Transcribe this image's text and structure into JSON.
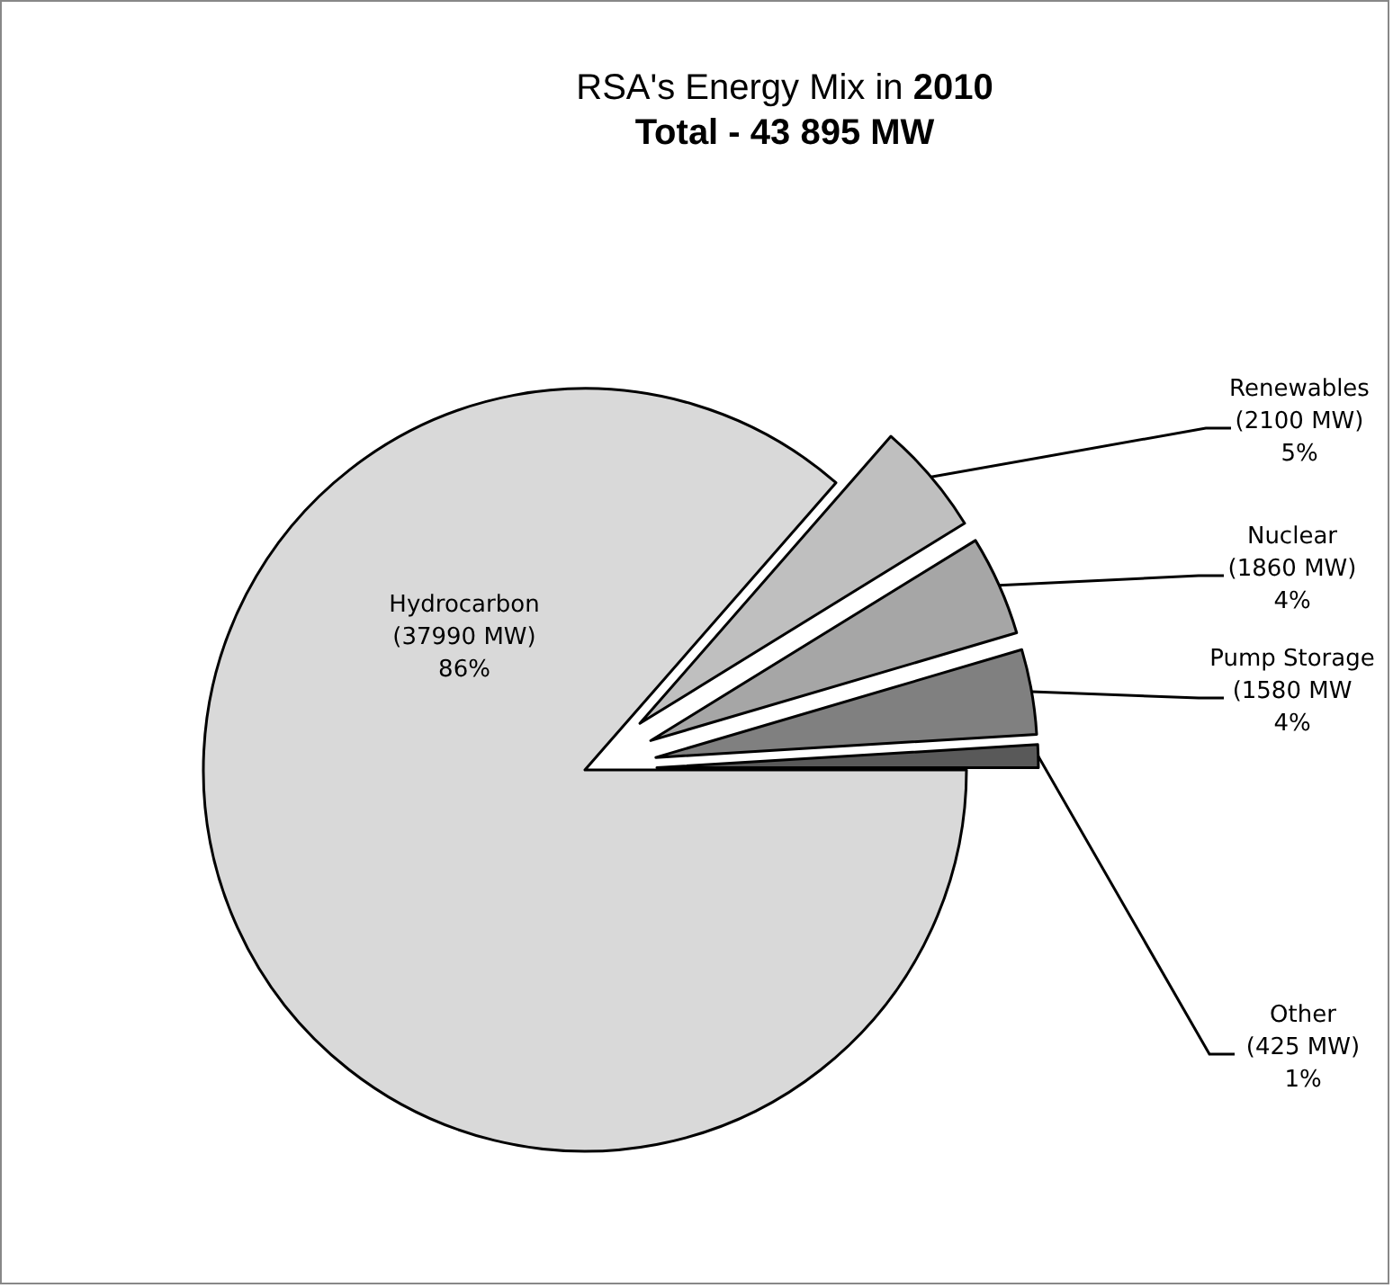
{
  "chart_data": {
    "type": "pie",
    "title": "RSA's Energy Mix in 2010",
    "subtitle": "Total - 43 895 MW",
    "categories": [
      "Hydrocarbon",
      "Renewables",
      "Nuclear",
      "Pump Storage",
      "Other"
    ],
    "values": [
      37990,
      2100,
      1860,
      1580,
      425
    ],
    "value_labels": [
      "(37990 MW)\n86%",
      "(2100 MW)\n5%",
      "(1860 MW)\n4%",
      "(1580 MW\n4%",
      "(425 MW)\n1%"
    ],
    "colors": [
      "#d9d9d9",
      "#bfbfbf",
      "#a6a6a6",
      "#808080",
      "#595959"
    ]
  }
}
